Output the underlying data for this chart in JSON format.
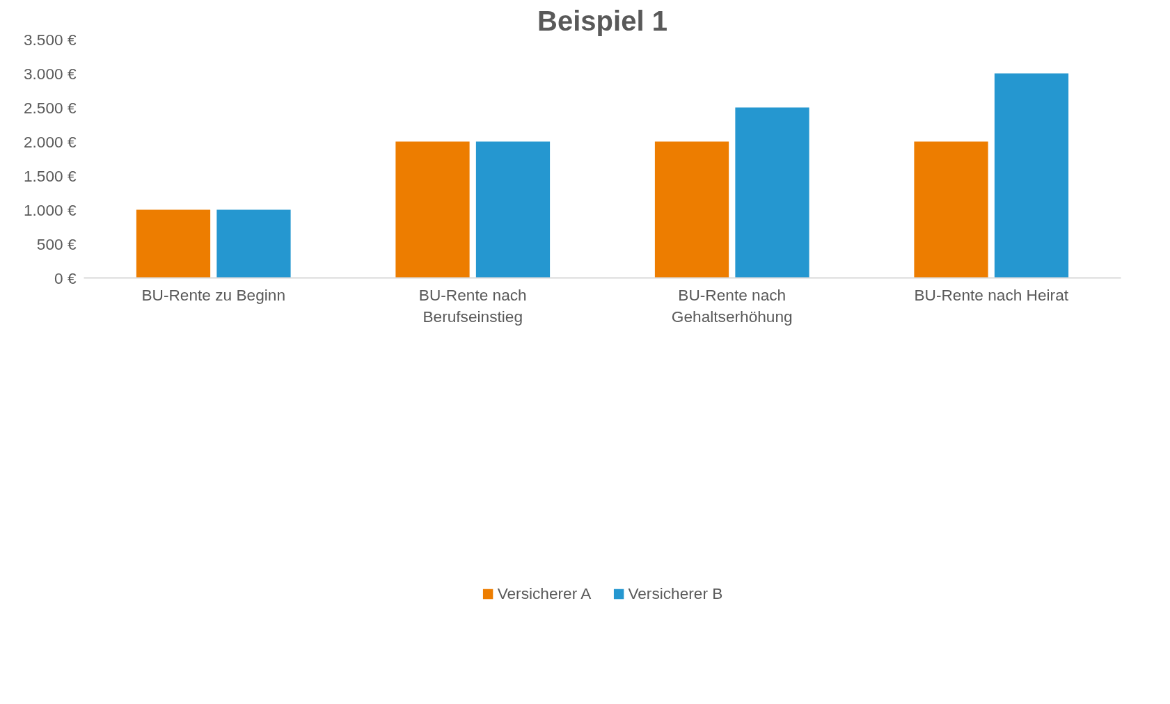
{
  "chart_data": {
    "type": "bar",
    "title": "Beispiel 1",
    "categories": [
      "BU-Rente zu Beginn",
      "BU-Rente nach Berufseinstieg",
      "BU-Rente nach Gehaltserhöhung",
      "BU-Rente nach Heirat"
    ],
    "series": [
      {
        "name": "Versicherer A",
        "color": "#ed7d00",
        "values": [
          1000,
          2000,
          2000,
          2000
        ]
      },
      {
        "name": "Versicherer B",
        "color": "#2597d0",
        "values": [
          1000,
          2000,
          2500,
          3000
        ]
      }
    ],
    "ylim": [
      0,
      3500
    ],
    "yticks": [
      {
        "value": 0,
        "label": "0 €"
      },
      {
        "value": 500,
        "label": "500 €"
      },
      {
        "value": 1000,
        "label": "1.000 €"
      },
      {
        "value": 1500,
        "label": "1.500 €"
      },
      {
        "value": 2000,
        "label": "2.000 €"
      },
      {
        "value": 2500,
        "label": "2.500 €"
      },
      {
        "value": 3000,
        "label": "3.000 €"
      },
      {
        "value": 3500,
        "label": "3.500 €"
      }
    ],
    "grid": false,
    "legend": "bottom"
  }
}
